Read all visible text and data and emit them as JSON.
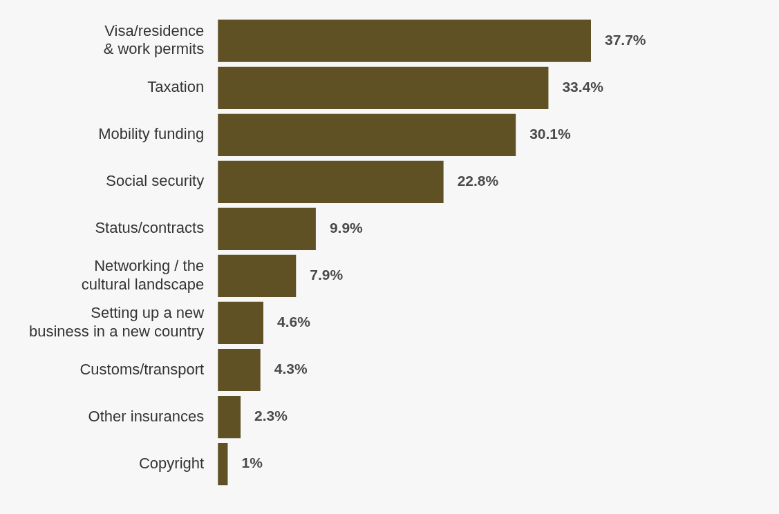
{
  "chart_data": {
    "type": "bar",
    "orientation": "horizontal",
    "categories": [
      "Visa/residence & work permits",
      "Taxation",
      "Mobility funding",
      "Social security",
      "Status/contracts",
      "Networking / the cultural landscape",
      "Setting up a new business in a new country",
      "Customs/transport",
      "Other insurances",
      "Copyright"
    ],
    "values": [
      37.7,
      33.4,
      30.1,
      22.8,
      9.9,
      7.9,
      4.6,
      4.3,
      2.3,
      1
    ],
    "value_labels": [
      "37.7%",
      "33.4%",
      "30.1%",
      "22.8%",
      "9.9%",
      "7.9%",
      "4.6%",
      "4.3%",
      "2.3%",
      "1%"
    ],
    "color": "#5f5124"
  }
}
